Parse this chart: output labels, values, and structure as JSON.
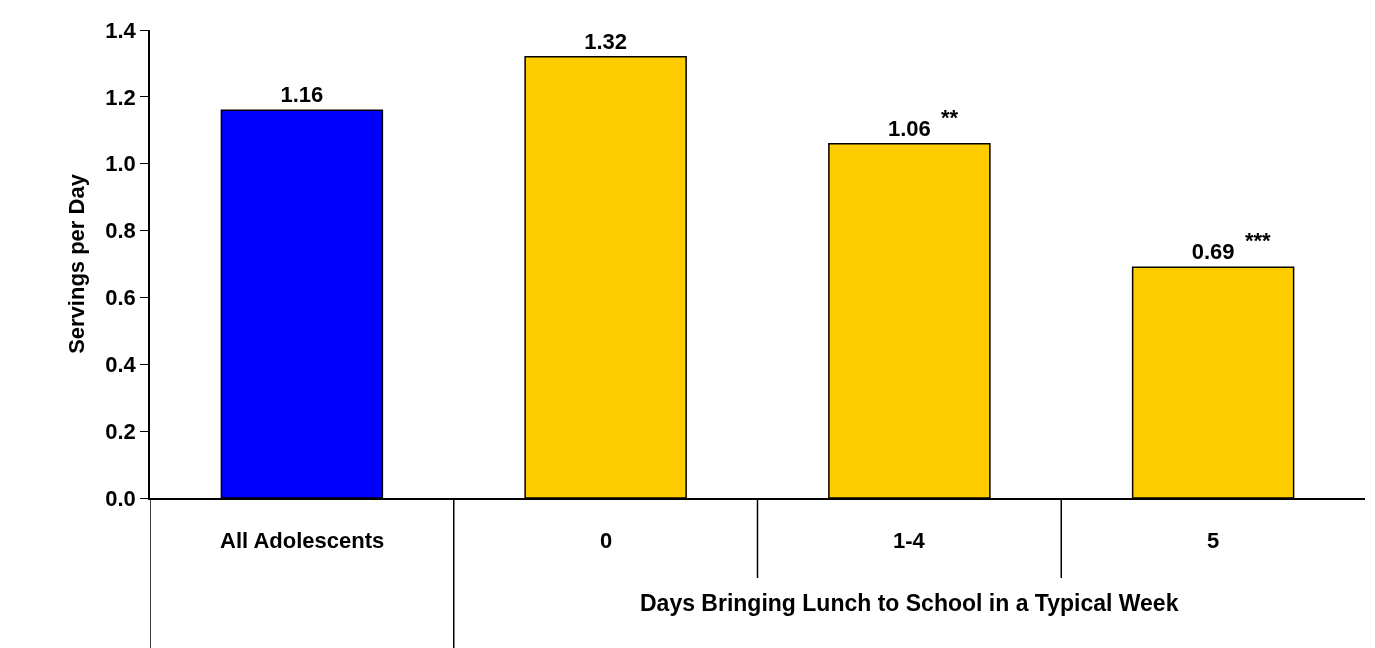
{
  "chart_data": {
    "type": "bar",
    "categories": [
      "All Adolescents",
      "0",
      "1-4",
      "5"
    ],
    "values": [
      1.16,
      1.32,
      1.06,
      0.69
    ],
    "colors": [
      "#0000ff",
      "#ffcc00",
      "#ffcc00",
      "#ffcc00"
    ],
    "ylabel": "Servings per Day",
    "xlabel": "Days Bringing Lunch to School in a Typical Week",
    "ylim": [
      0,
      1.4
    ],
    "yticks": [
      {
        "value": 0,
        "label": "0.0"
      },
      0.2,
      0.4,
      0.6,
      0.8,
      {
        "value": 1,
        "label": "1.0"
      },
      1.2,
      1.4
    ],
    "data_labels": true,
    "grid": false,
    "annotations": [
      {
        "text": "**",
        "x": "1-4",
        "y": 1.06
      },
      {
        "text": "***",
        "x": "5",
        "y": 0.69
      }
    ]
  }
}
